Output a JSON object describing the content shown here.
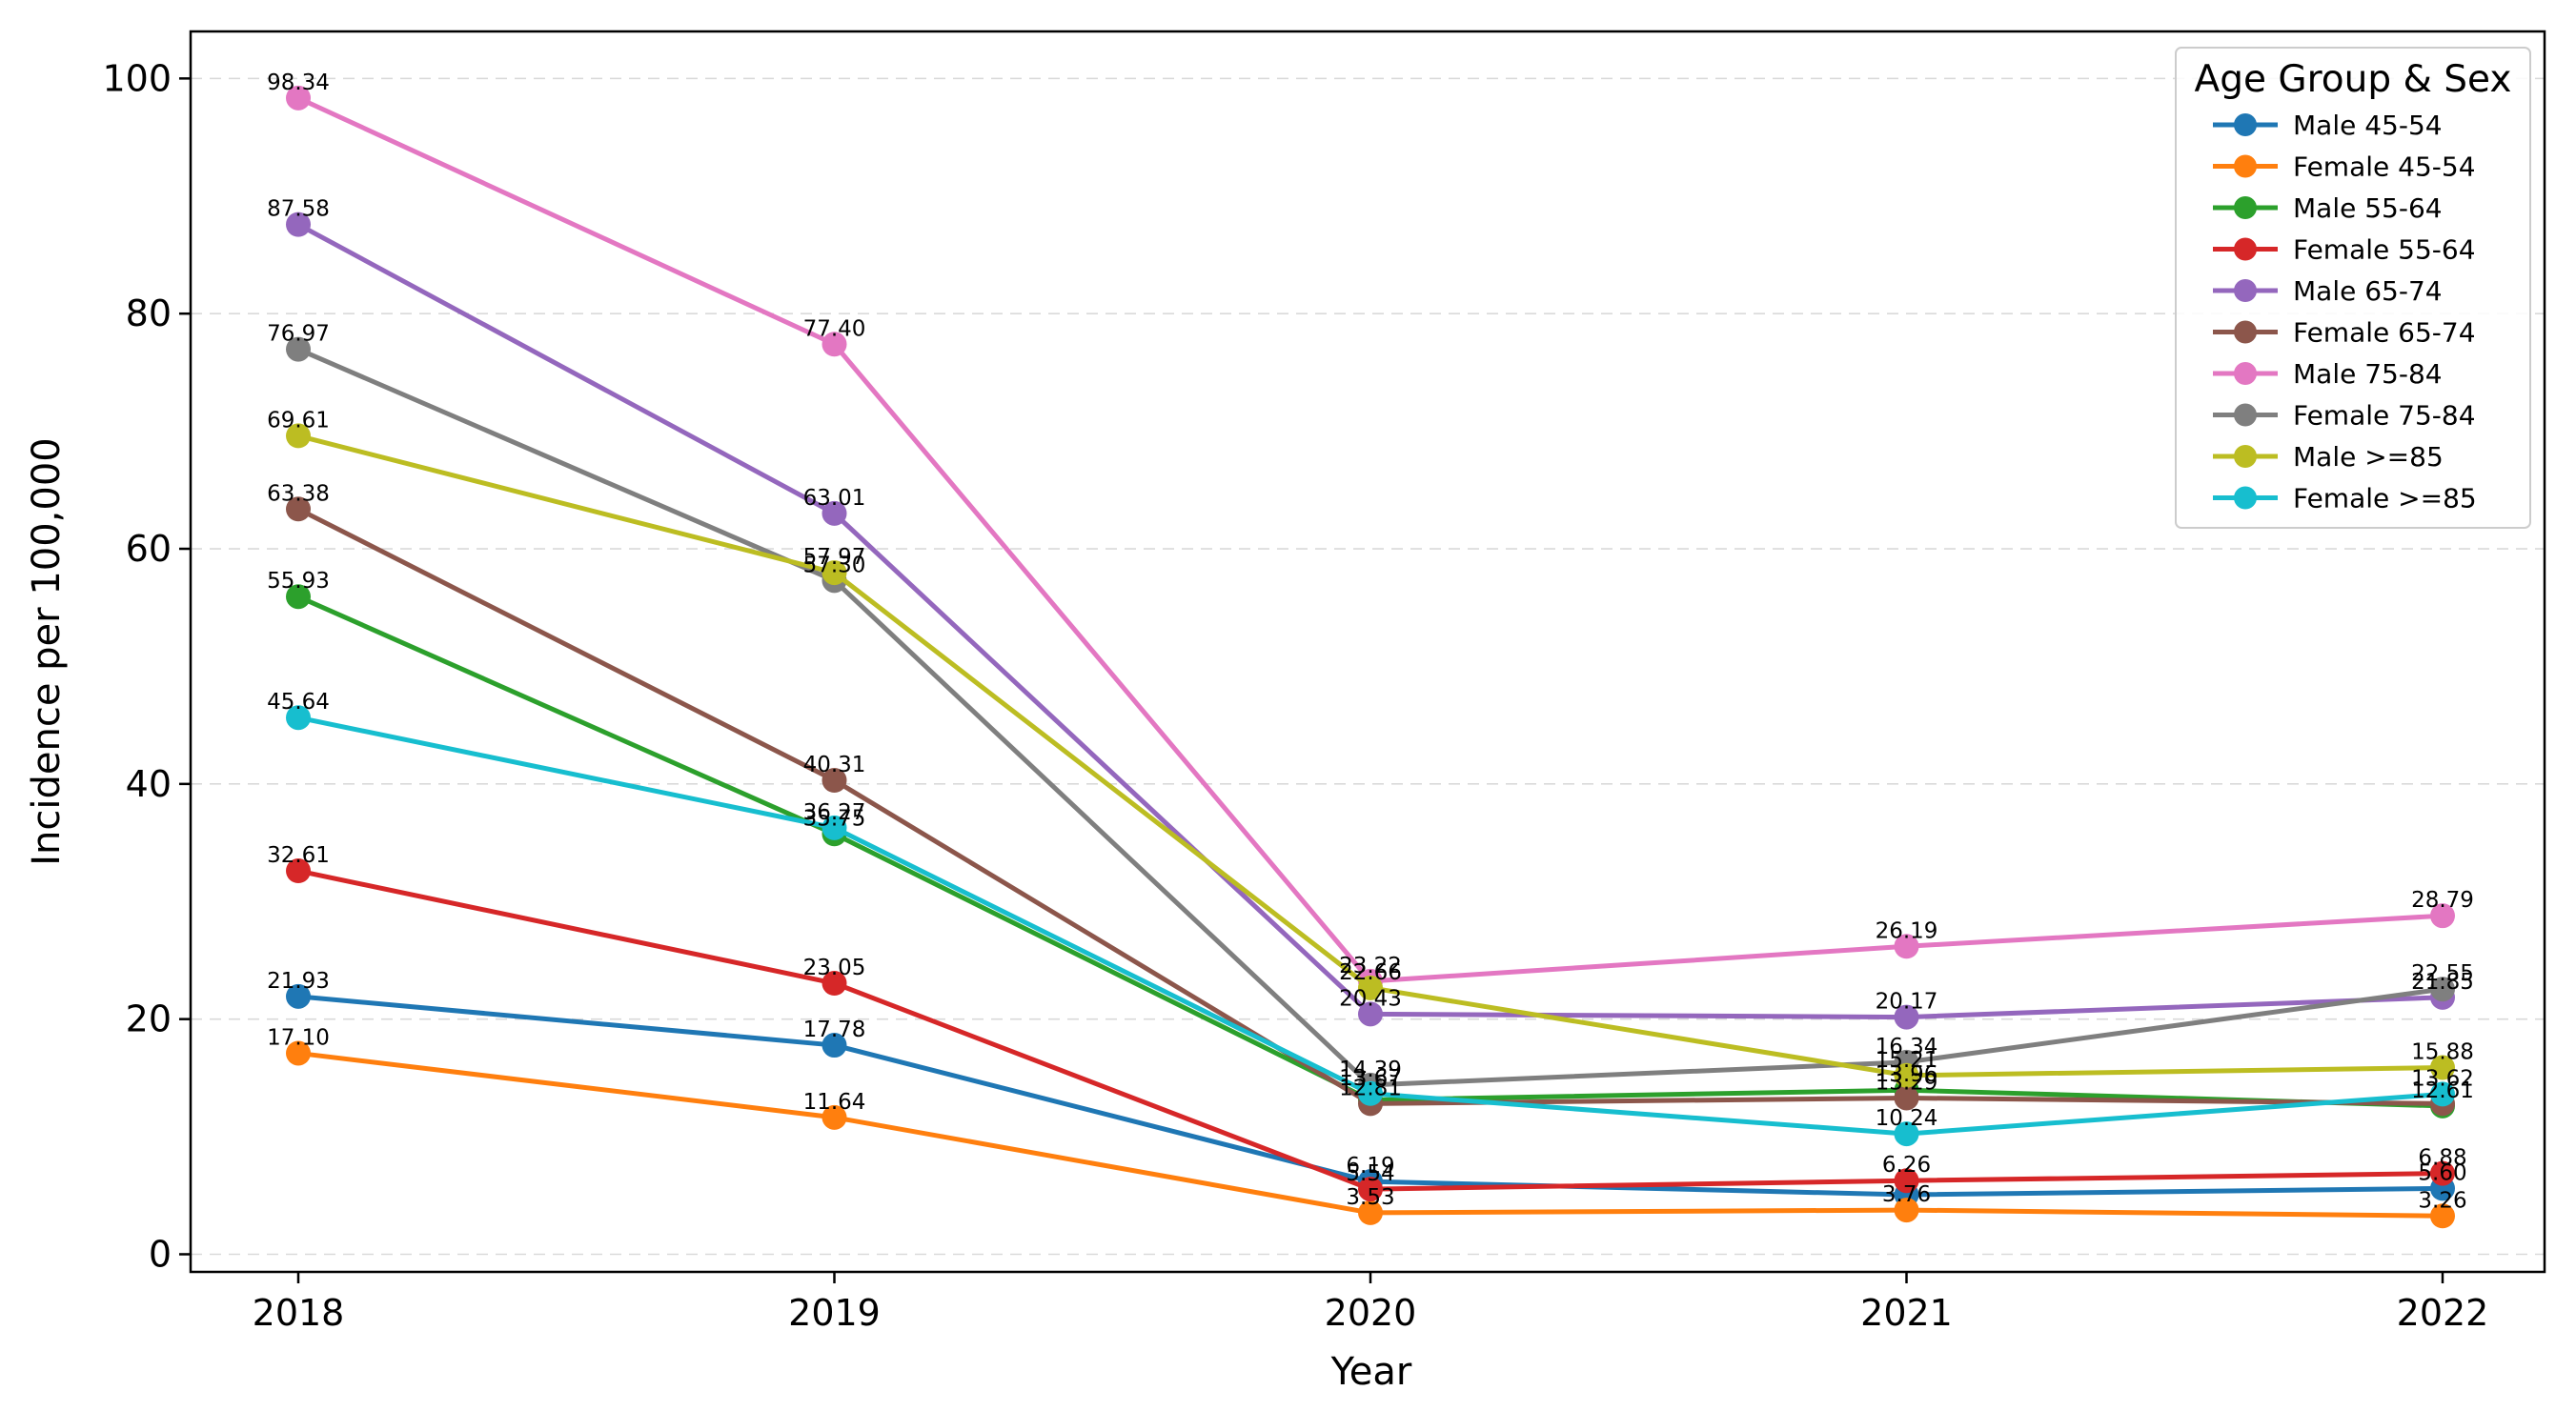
{
  "chart_data": {
    "type": "line",
    "title": "",
    "xlabel": "Year",
    "ylabel": "Incidence per 100,000",
    "x": [
      "2018",
      "2019",
      "2020",
      "2021",
      "2022"
    ],
    "ylim": [
      -1.5,
      104
    ],
    "yticks": [
      0,
      20,
      40,
      60,
      80,
      100
    ],
    "grid": "y-dashed",
    "legend": {
      "title": "Age Group & Sex",
      "placement": "top-right"
    },
    "series": [
      {
        "name": "Male 45-54",
        "color": "#1f77b4",
        "values": [
          21.93,
          17.78,
          6.19,
          5.06,
          5.6
        ],
        "labels": [
          "21.93",
          "17.78",
          "6.19",
          "",
          "5.60"
        ]
      },
      {
        "name": "Female 45-54",
        "color": "#ff7f0e",
        "values": [
          17.1,
          11.64,
          3.53,
          3.76,
          3.26
        ],
        "labels": [
          "17.10",
          "11.64",
          "3.53",
          "3.76",
          "3.26"
        ]
      },
      {
        "name": "Male 55-64",
        "color": "#2ca02c",
        "values": [
          55.93,
          35.75,
          13.12,
          13.96,
          12.61
        ],
        "labels": [
          "55.93",
          "35.75",
          "",
          "13.96",
          "12.61"
        ]
      },
      {
        "name": "Female 55-64",
        "color": "#d62728",
        "values": [
          32.61,
          23.05,
          5.54,
          6.26,
          6.88
        ],
        "labels": [
          "32.61",
          "23.05",
          "5.54",
          "6.26",
          "6.88"
        ]
      },
      {
        "name": "Male 65-74",
        "color": "#9467bd",
        "values": [
          87.58,
          63.01,
          20.43,
          20.17,
          21.85
        ],
        "labels": [
          "87.58",
          "63.01",
          "20.43",
          "20.17",
          "21.85"
        ]
      },
      {
        "name": "Female 65-74",
        "color": "#8c564b",
        "values": [
          63.38,
          40.31,
          12.81,
          13.29,
          12.81
        ],
        "labels": [
          "63.38",
          "40.31",
          "12.81",
          "13.29",
          ""
        ]
      },
      {
        "name": "Male 75-84",
        "color": "#e377c2",
        "values": [
          98.34,
          77.4,
          23.22,
          26.19,
          28.79
        ],
        "labels": [
          "98.34",
          "77.40",
          "23.22",
          "26.19",
          "28.79"
        ]
      },
      {
        "name": "Female 75-84",
        "color": "#7f7f7f",
        "values": [
          76.97,
          57.3,
          14.39,
          16.34,
          22.55
        ],
        "labels": [
          "76.97",
          "57.30",
          "14.39",
          "16.34",
          "22.55"
        ]
      },
      {
        "name": "Male >=85",
        "color": "#bcbd22",
        "values": [
          69.61,
          57.97,
          22.66,
          15.21,
          15.88
        ],
        "labels": [
          "69.61",
          "57.97",
          "22.66",
          "15.21",
          "15.88"
        ]
      },
      {
        "name": "Female >=85",
        "color": "#17becf",
        "values": [
          45.64,
          36.27,
          13.67,
          10.24,
          13.62
        ],
        "labels": [
          "45.64",
          "36.27",
          "13.67",
          "10.24",
          "13.62"
        ]
      }
    ]
  }
}
